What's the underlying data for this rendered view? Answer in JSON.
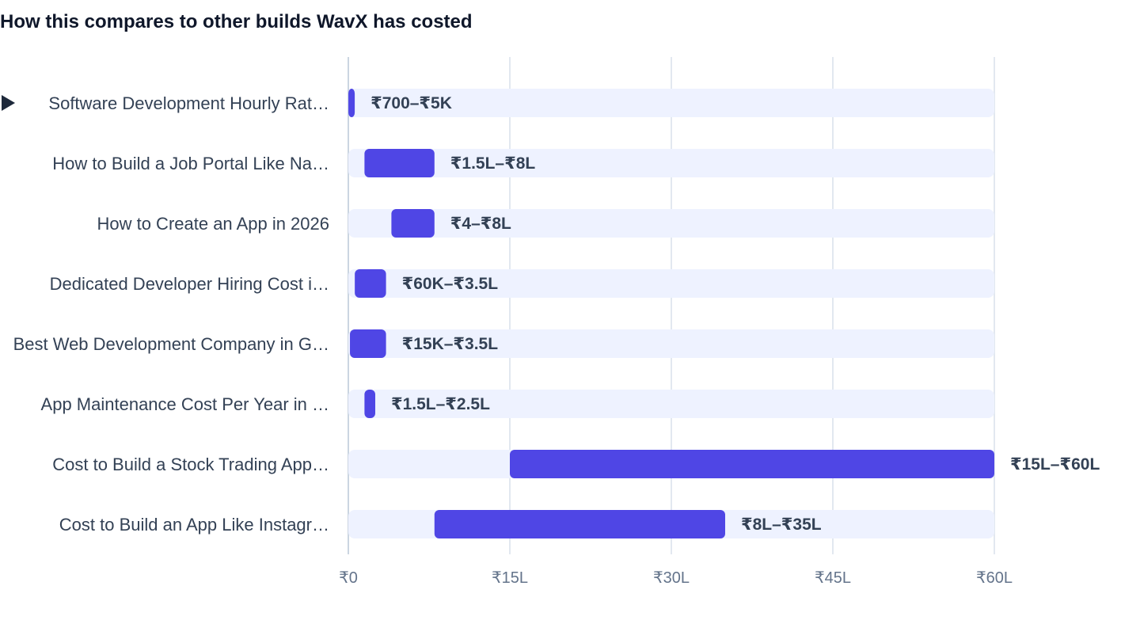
{
  "chart_data": {
    "type": "bar",
    "title": "How this compares to other builds WavX has costed",
    "orientation": "horizontal-range",
    "unit": "INR lakhs (L)",
    "xlim": [
      0,
      60
    ],
    "x_ticks": [
      {
        "value": 0,
        "label": "₹0"
      },
      {
        "value": 15,
        "label": "₹15L"
      },
      {
        "value": 30,
        "label": "₹30L"
      },
      {
        "value": 45,
        "label": "₹45L"
      },
      {
        "value": 60,
        "label": "₹60L"
      }
    ],
    "grid": true,
    "colors": {
      "bar": "#4f46e5",
      "track": "#eef2ff",
      "grid": "#e2e8f0",
      "text": "#334155",
      "tick": "#64748b"
    },
    "categories": [
      {
        "label": "Software Development Hourly Rat…",
        "low": 0.007,
        "high": 0.05,
        "value_label": "₹700–₹5K",
        "highlighted": true
      },
      {
        "label": "How to Build a Job Portal Like Na…",
        "low": 1.5,
        "high": 8,
        "value_label": "₹1.5L–₹8L",
        "highlighted": false
      },
      {
        "label": "How to Create an App in 2026",
        "low": 4,
        "high": 8,
        "value_label": "₹4–₹8L",
        "highlighted": false
      },
      {
        "label": "Dedicated Developer Hiring Cost i…",
        "low": 0.6,
        "high": 3.5,
        "value_label": "₹60K–₹3.5L",
        "highlighted": false
      },
      {
        "label": "Best Web Development Company in G…",
        "low": 0.15,
        "high": 3.5,
        "value_label": "₹15K–₹3.5L",
        "highlighted": false
      },
      {
        "label": "App Maintenance Cost Per Year in …",
        "low": 1.5,
        "high": 2.5,
        "value_label": "₹1.5L–₹2.5L",
        "highlighted": false
      },
      {
        "label": "Cost to Build a Stock Trading App…",
        "low": 15,
        "high": 60,
        "value_label": "₹15L–₹60L",
        "highlighted": false
      },
      {
        "label": "Cost to Build an App Like Instagr…",
        "low": 8,
        "high": 35,
        "value_label": "₹8L–₹35L",
        "highlighted": false
      }
    ]
  }
}
